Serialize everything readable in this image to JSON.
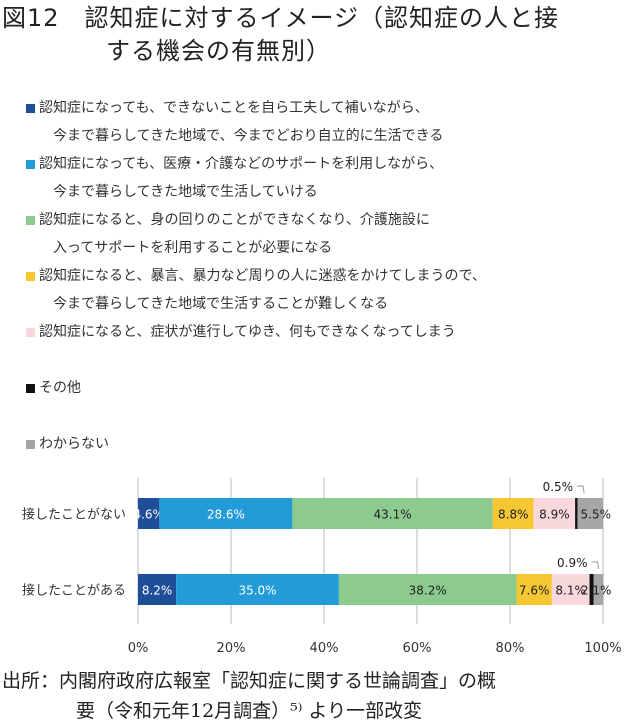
{
  "title": {
    "line1": "図12　認知症に対するイメージ（認知症の人と接",
    "line2": "する機会の有無別）"
  },
  "source": {
    "line1": "出所：内閣府政府広報室「認知症に関する世論調査」の概",
    "line2": "要（令和元年12月調査）⁵⁾ より一部改変"
  },
  "chart_data": {
    "type": "bar",
    "orientation": "horizontal",
    "stacked": true,
    "grid": true,
    "legend_position": "top",
    "xlim": [
      0,
      100
    ],
    "xticks": [
      "0%",
      "20%",
      "40%",
      "60%",
      "80%",
      "100%"
    ],
    "categories": [
      "接したことがない",
      "接したことがある"
    ],
    "series": [
      {
        "name": "認知症になっても、できないことを自ら工夫して補いながら、|今まで暮らしてきた地域で、今までどおり自立的に生活できる",
        "color": "#1f4e99",
        "label_color": "#ffffff",
        "values": [
          4.6,
          8.2
        ]
      },
      {
        "name": "認知症になっても、医療・介護などのサポートを利用しながら、|今まで暮らしてきた地域で生活していける",
        "color": "#229bd8",
        "label_color": "#ffffff",
        "values": [
          28.6,
          35.0
        ]
      },
      {
        "name": "認知症になると、身の回りのことができなくなり、介護施設に|入ってサポートを利用することが必要になる",
        "color": "#8dca8d",
        "label_color": "#222222",
        "values": [
          43.1,
          38.2
        ]
      },
      {
        "name": "認知症になると、暴言、暴力など周りの人に迷惑をかけてしまうので、|今まで暮らしてきた地域で生活することが難しくなる",
        "color": "#f5c733",
        "label_color": "#222222",
        "values": [
          8.8,
          7.6
        ]
      },
      {
        "name": " 認知症になると、症状が進行してゆき、何もできなくなってしまう",
        "color": "#f8d8da",
        "label_color": "#222222",
        "values": [
          8.9,
          8.1
        ]
      },
      {
        "name": "その他",
        "color": "#111111",
        "label_color": "#222222",
        "values": [
          0.5,
          0.9
        ]
      },
      {
        "name": "わからない",
        "color": "#a6a6a6",
        "label_color": "#222222",
        "values": [
          5.5,
          2.1
        ]
      }
    ]
  }
}
